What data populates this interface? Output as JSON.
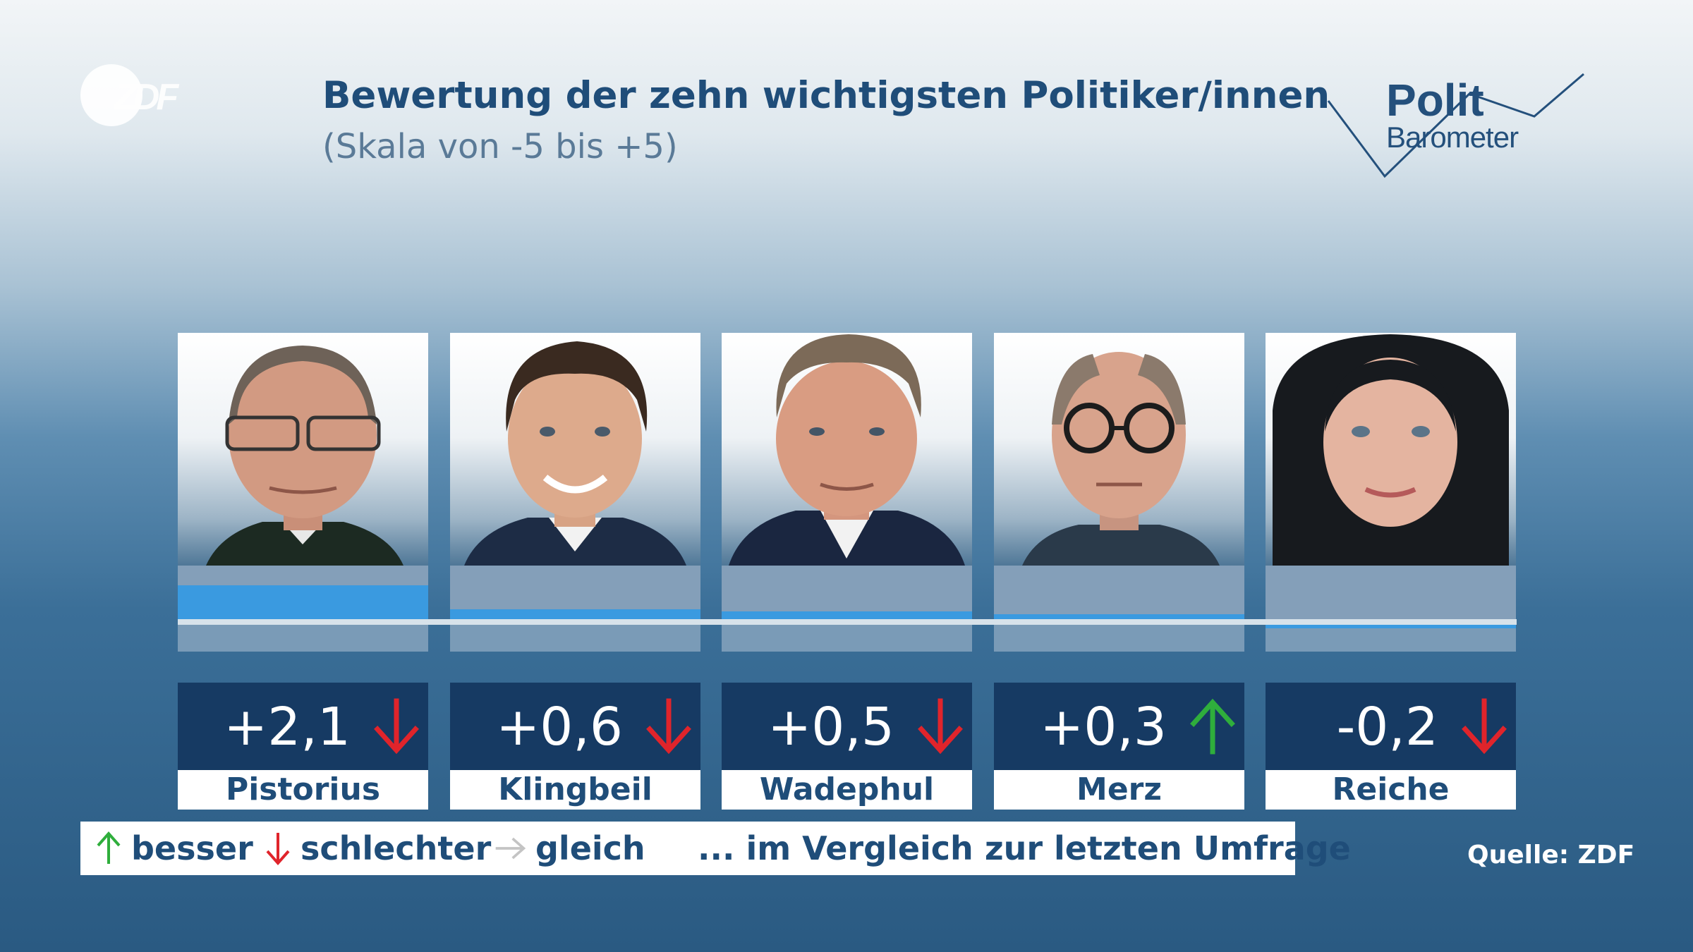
{
  "header": {
    "title": "Bewertung der zehn wichtigsten Politiker/innen",
    "subtitle": "(Skala von -5 bis +5)"
  },
  "brand": {
    "channel_logo": "ZDF",
    "polit": "Polit",
    "barometer": "Barometer"
  },
  "chart_data": {
    "type": "bar",
    "title": "Bewertung der zehn wichtigsten Politiker/innen",
    "subtitle": "(Skala von -5 bis +5)",
    "categories": [
      "Pistorius",
      "Klingbeil",
      "Wadephul",
      "Merz",
      "Reiche"
    ],
    "values": [
      2.1,
      0.6,
      0.5,
      0.3,
      -0.2
    ],
    "value_labels": [
      "+2,1",
      "+0,6",
      "+0,5",
      "+0,3",
      "-0,2"
    ],
    "trends": [
      "down",
      "down",
      "down",
      "up",
      "down"
    ],
    "ylim": [
      -5,
      5
    ],
    "xlabel": "",
    "ylabel": ""
  },
  "legend": {
    "up": "besser",
    "down": "schlechter",
    "same": "gleich",
    "comparison": "... im Vergleich zur letzten Umfrage"
  },
  "source": "Quelle: ZDF",
  "colors": {
    "bar": "#3a9ae0",
    "up": "#2fae3c",
    "down": "#e0242b",
    "same": "#c4c4c4",
    "title": "#1f4d79",
    "value_box": "#163a63"
  }
}
